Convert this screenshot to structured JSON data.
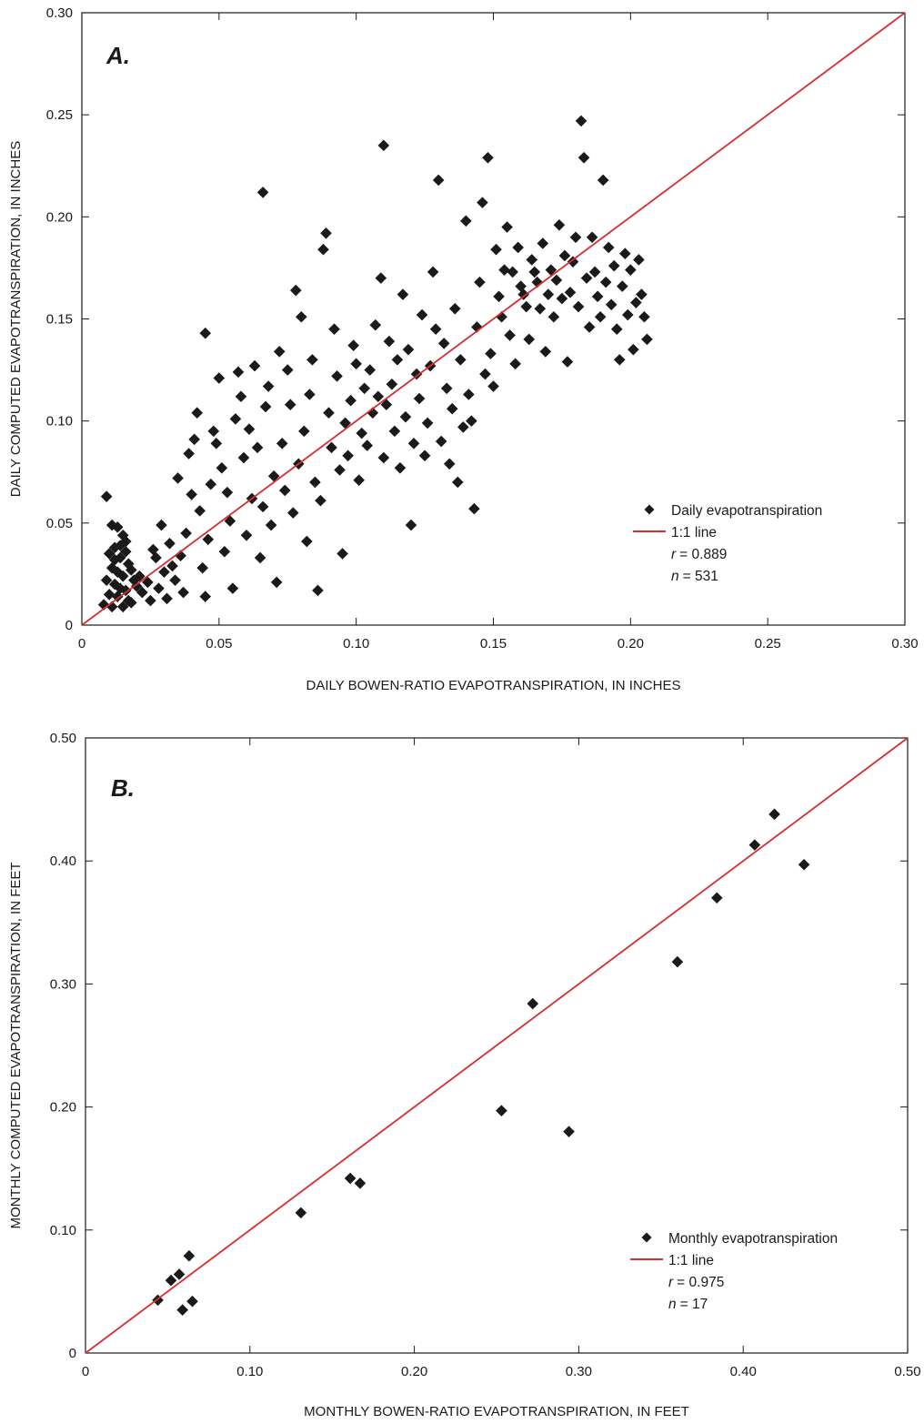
{
  "chart_data": [
    {
      "type": "scatter",
      "panel_label": "A.",
      "xlabel": "DAILY BOWEN-RATIO EVAPOTRANSPIRATION, IN INCHES",
      "ylabel": "DAILY COMPUTED EVAPOTRANSPIRATION, IN INCHES",
      "xlim": [
        0,
        0.3
      ],
      "ylim": [
        0,
        0.3
      ],
      "xticks": [
        {
          "v": 0,
          "label": "0"
        },
        {
          "v": 0.05,
          "label": "0.05"
        },
        {
          "v": 0.1,
          "label": "0.10"
        },
        {
          "v": 0.15,
          "label": "0.15"
        },
        {
          "v": 0.2,
          "label": "0.20"
        },
        {
          "v": 0.25,
          "label": "0.25"
        },
        {
          "v": 0.3,
          "label": "0.30"
        }
      ],
      "yticks": [
        {
          "v": 0,
          "label": "0"
        },
        {
          "v": 0.05,
          "label": "0.05"
        },
        {
          "v": 0.1,
          "label": "0.10"
        },
        {
          "v": 0.15,
          "label": "0.15"
        },
        {
          "v": 0.2,
          "label": "0.20"
        },
        {
          "v": 0.25,
          "label": "0.25"
        },
        {
          "v": 0.3,
          "label": "0.30"
        }
      ],
      "legend": {
        "placement": "bottom-right",
        "marker_label": "Daily evapotranspiration",
        "line_label": "1:1 line",
        "r_symbol": "r",
        "r_value": "= 0.889",
        "n_symbol": "n",
        "n_value": "= 531"
      },
      "line_color": "#d62e2e",
      "marker_color": "#1a1a1a",
      "series": [
        {
          "name": "Daily evapotranspiration",
          "points": [
            [
              0.009,
              0.063
            ],
            [
              0.011,
              0.049
            ],
            [
              0.013,
              0.048
            ],
            [
              0.015,
              0.044
            ],
            [
              0.016,
              0.041
            ],
            [
              0.012,
              0.038
            ],
            [
              0.01,
              0.035
            ],
            [
              0.014,
              0.033
            ],
            [
              0.017,
              0.03
            ],
            [
              0.011,
              0.028
            ],
            [
              0.013,
              0.026
            ],
            [
              0.015,
              0.024
            ],
            [
              0.009,
              0.022
            ],
            [
              0.012,
              0.02
            ],
            [
              0.014,
              0.018
            ],
            [
              0.016,
              0.017
            ],
            [
              0.01,
              0.015
            ],
            [
              0.013,
              0.014
            ],
            [
              0.017,
              0.012
            ],
            [
              0.008,
              0.01
            ],
            [
              0.011,
              0.009
            ],
            [
              0.015,
              0.009
            ],
            [
              0.018,
              0.011
            ],
            [
              0.012,
              0.032
            ],
            [
              0.016,
              0.036
            ],
            [
              0.014,
              0.039
            ],
            [
              0.018,
              0.027
            ],
            [
              0.019,
              0.022
            ],
            [
              0.02,
              0.019
            ],
            [
              0.021,
              0.024
            ],
            [
              0.022,
              0.016
            ],
            [
              0.024,
              0.021
            ],
            [
              0.025,
              0.012
            ],
            [
              0.026,
              0.037
            ],
            [
              0.027,
              0.033
            ],
            [
              0.028,
              0.018
            ],
            [
              0.029,
              0.049
            ],
            [
              0.03,
              0.026
            ],
            [
              0.031,
              0.013
            ],
            [
              0.032,
              0.04
            ],
            [
              0.033,
              0.029
            ],
            [
              0.034,
              0.022
            ],
            [
              0.035,
              0.072
            ],
            [
              0.036,
              0.034
            ],
            [
              0.037,
              0.016
            ],
            [
              0.038,
              0.045
            ],
            [
              0.039,
              0.084
            ],
            [
              0.04,
              0.064
            ],
            [
              0.041,
              0.091
            ],
            [
              0.042,
              0.104
            ],
            [
              0.043,
              0.056
            ],
            [
              0.044,
              0.028
            ],
            [
              0.045,
              0.014
            ],
            [
              0.046,
              0.042
            ],
            [
              0.047,
              0.069
            ],
            [
              0.048,
              0.095
            ],
            [
              0.049,
              0.089
            ],
            [
              0.045,
              0.143
            ],
            [
              0.05,
              0.121
            ],
            [
              0.051,
              0.077
            ],
            [
              0.052,
              0.036
            ],
            [
              0.053,
              0.065
            ],
            [
              0.054,
              0.051
            ],
            [
              0.055,
              0.018
            ],
            [
              0.056,
              0.101
            ],
            [
              0.057,
              0.124
            ],
            [
              0.058,
              0.112
            ],
            [
              0.059,
              0.082
            ],
            [
              0.06,
              0.044
            ],
            [
              0.061,
              0.096
            ],
            [
              0.062,
              0.062
            ],
            [
              0.063,
              0.127
            ],
            [
              0.064,
              0.087
            ],
            [
              0.065,
              0.033
            ],
            [
              0.066,
              0.058
            ],
            [
              0.067,
              0.107
            ],
            [
              0.068,
              0.117
            ],
            [
              0.069,
              0.049
            ],
            [
              0.07,
              0.073
            ],
            [
              0.071,
              0.021
            ],
            [
              0.072,
              0.134
            ],
            [
              0.073,
              0.089
            ],
            [
              0.074,
              0.066
            ],
            [
              0.075,
              0.125
            ],
            [
              0.066,
              0.212
            ],
            [
              0.076,
              0.108
            ],
            [
              0.077,
              0.055
            ],
            [
              0.078,
              0.164
            ],
            [
              0.079,
              0.079
            ],
            [
              0.08,
              0.151
            ],
            [
              0.081,
              0.095
            ],
            [
              0.082,
              0.041
            ],
            [
              0.083,
              0.113
            ],
            [
              0.084,
              0.13
            ],
            [
              0.085,
              0.07
            ],
            [
              0.086,
              0.017
            ],
            [
              0.087,
              0.061
            ],
            [
              0.088,
              0.184
            ],
            [
              0.089,
              0.192
            ],
            [
              0.09,
              0.104
            ],
            [
              0.091,
              0.087
            ],
            [
              0.092,
              0.145
            ],
            [
              0.093,
              0.122
            ],
            [
              0.094,
              0.076
            ],
            [
              0.095,
              0.035
            ],
            [
              0.096,
              0.099
            ],
            [
              0.097,
              0.083
            ],
            [
              0.098,
              0.11
            ],
            [
              0.099,
              0.137
            ],
            [
              0.1,
              0.128
            ],
            [
              0.101,
              0.071
            ],
            [
              0.102,
              0.094
            ],
            [
              0.103,
              0.116
            ],
            [
              0.104,
              0.088
            ],
            [
              0.105,
              0.125
            ],
            [
              0.106,
              0.104
            ],
            [
              0.107,
              0.147
            ],
            [
              0.108,
              0.112
            ],
            [
              0.109,
              0.17
            ],
            [
              0.11,
              0.082
            ],
            [
              0.111,
              0.108
            ],
            [
              0.112,
              0.139
            ],
            [
              0.113,
              0.118
            ],
            [
              0.114,
              0.095
            ],
            [
              0.115,
              0.13
            ],
            [
              0.116,
              0.077
            ],
            [
              0.117,
              0.162
            ],
            [
              0.118,
              0.102
            ],
            [
              0.119,
              0.135
            ],
            [
              0.12,
              0.049
            ],
            [
              0.11,
              0.235
            ],
            [
              0.121,
              0.089
            ],
            [
              0.122,
              0.123
            ],
            [
              0.123,
              0.111
            ],
            [
              0.124,
              0.152
            ],
            [
              0.125,
              0.083
            ],
            [
              0.126,
              0.099
            ],
            [
              0.127,
              0.127
            ],
            [
              0.128,
              0.173
            ],
            [
              0.129,
              0.145
            ],
            [
              0.13,
              0.218
            ],
            [
              0.131,
              0.09
            ],
            [
              0.132,
              0.138
            ],
            [
              0.133,
              0.116
            ],
            [
              0.134,
              0.079
            ],
            [
              0.135,
              0.106
            ],
            [
              0.136,
              0.155
            ],
            [
              0.137,
              0.07
            ],
            [
              0.138,
              0.13
            ],
            [
              0.139,
              0.097
            ],
            [
              0.14,
              0.198
            ],
            [
              0.141,
              0.113
            ],
            [
              0.142,
              0.1
            ],
            [
              0.143,
              0.057
            ],
            [
              0.144,
              0.146
            ],
            [
              0.145,
              0.168
            ],
            [
              0.146,
              0.207
            ],
            [
              0.147,
              0.123
            ],
            [
              0.148,
              0.229
            ],
            [
              0.149,
              0.133
            ],
            [
              0.15,
              0.117
            ],
            [
              0.151,
              0.184
            ],
            [
              0.152,
              0.161
            ],
            [
              0.153,
              0.151
            ],
            [
              0.154,
              0.174
            ],
            [
              0.155,
              0.195
            ],
            [
              0.156,
              0.142
            ],
            [
              0.157,
              0.173
            ],
            [
              0.158,
              0.128
            ],
            [
              0.159,
              0.185
            ],
            [
              0.16,
              0.166
            ],
            [
              0.161,
              0.162
            ],
            [
              0.162,
              0.156
            ],
            [
              0.163,
              0.14
            ],
            [
              0.164,
              0.179
            ],
            [
              0.165,
              0.173
            ],
            [
              0.166,
              0.168
            ],
            [
              0.167,
              0.155
            ],
            [
              0.168,
              0.187
            ],
            [
              0.169,
              0.134
            ],
            [
              0.17,
              0.162
            ],
            [
              0.171,
              0.174
            ],
            [
              0.172,
              0.151
            ],
            [
              0.173,
              0.169
            ],
            [
              0.174,
              0.196
            ],
            [
              0.175,
              0.16
            ],
            [
              0.176,
              0.181
            ],
            [
              0.177,
              0.129
            ],
            [
              0.178,
              0.163
            ],
            [
              0.179,
              0.178
            ],
            [
              0.18,
              0.19
            ],
            [
              0.181,
              0.156
            ],
            [
              0.182,
              0.247
            ],
            [
              0.183,
              0.229
            ],
            [
              0.184,
              0.17
            ],
            [
              0.185,
              0.146
            ],
            [
              0.186,
              0.19
            ],
            [
              0.187,
              0.173
            ],
            [
              0.188,
              0.161
            ],
            [
              0.189,
              0.151
            ],
            [
              0.19,
              0.218
            ],
            [
              0.191,
              0.168
            ],
            [
              0.192,
              0.185
            ],
            [
              0.193,
              0.157
            ],
            [
              0.194,
              0.176
            ],
            [
              0.195,
              0.145
            ],
            [
              0.196,
              0.13
            ],
            [
              0.197,
              0.166
            ],
            [
              0.198,
              0.182
            ],
            [
              0.199,
              0.152
            ],
            [
              0.2,
              0.174
            ],
            [
              0.201,
              0.135
            ],
            [
              0.202,
              0.158
            ],
            [
              0.203,
              0.179
            ],
            [
              0.204,
              0.162
            ],
            [
              0.205,
              0.151
            ],
            [
              0.206,
              0.14
            ]
          ]
        }
      ]
    },
    {
      "type": "scatter",
      "panel_label": "B.",
      "xlabel": "MONTHLY BOWEN-RATIO EVAPOTRANSPIRATION, IN FEET",
      "ylabel": "MONTHLY COMPUTED EVAPOTRANSPIRATION, IN FEET",
      "xlim": [
        0,
        0.5
      ],
      "ylim": [
        0,
        0.5
      ],
      "xticks": [
        {
          "v": 0,
          "label": "0"
        },
        {
          "v": 0.1,
          "label": "0.10"
        },
        {
          "v": 0.2,
          "label": "0.20"
        },
        {
          "v": 0.3,
          "label": "0.30"
        },
        {
          "v": 0.4,
          "label": "0.40"
        },
        {
          "v": 0.5,
          "label": "0.50"
        }
      ],
      "yticks": [
        {
          "v": 0,
          "label": "0"
        },
        {
          "v": 0.1,
          "label": "0.10"
        },
        {
          "v": 0.2,
          "label": "0.20"
        },
        {
          "v": 0.3,
          "label": "0.30"
        },
        {
          "v": 0.4,
          "label": "0.40"
        },
        {
          "v": 0.5,
          "label": "0.50"
        }
      ],
      "legend": {
        "placement": "bottom-right",
        "marker_label": "Monthly evapotranspiration",
        "line_label": "1:1 line",
        "r_symbol": "r",
        "r_value": "= 0.975",
        "n_symbol": "n",
        "n_value": "= 17"
      },
      "line_color": "#d62e2e",
      "marker_color": "#1a1a1a",
      "series": [
        {
          "name": "Monthly evapotranspiration",
          "points": [
            [
              0.044,
              0.043
            ],
            [
              0.052,
              0.059
            ],
            [
              0.057,
              0.064
            ],
            [
              0.059,
              0.035
            ],
            [
              0.063,
              0.079
            ],
            [
              0.065,
              0.042
            ],
            [
              0.131,
              0.114
            ],
            [
              0.161,
              0.142
            ],
            [
              0.167,
              0.138
            ],
            [
              0.253,
              0.197
            ],
            [
              0.272,
              0.284
            ],
            [
              0.294,
              0.18
            ],
            [
              0.36,
              0.318
            ],
            [
              0.384,
              0.37
            ],
            [
              0.407,
              0.413
            ],
            [
              0.419,
              0.438
            ],
            [
              0.437,
              0.397
            ]
          ]
        }
      ]
    }
  ]
}
